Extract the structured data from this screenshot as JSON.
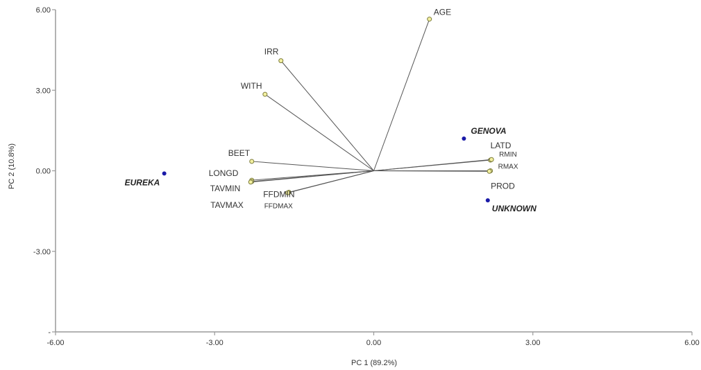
{
  "chart_data": {
    "type": "scatter",
    "subtype": "pca-biplot",
    "title": "",
    "xlabel": "PC 1 (89.2%)",
    "ylabel": "PC 2 (10.8%)",
    "xlim": [
      -6,
      6
    ],
    "ylim": [
      -6,
      6
    ],
    "x_ticks": [
      {
        "value": -6,
        "label": "-6.00"
      },
      {
        "value": -3,
        "label": "-3.00"
      },
      {
        "value": 0,
        "label": "0.00"
      },
      {
        "value": 3,
        "label": "3.00"
      },
      {
        "value": 6,
        "label": "6.00"
      }
    ],
    "y_ticks": [
      {
        "value": 6,
        "label": "6.00"
      },
      {
        "value": 3,
        "label": "3.00"
      },
      {
        "value": 0,
        "label": "0.00"
      },
      {
        "value": -3,
        "label": "-3.00"
      },
      {
        "value": -6,
        "label": "-"
      }
    ],
    "grid": false,
    "colors": {
      "axis": "#9a9a9a",
      "vector": "#555555",
      "vector_tip_fill": "#f3f0a0",
      "vector_tip_stroke": "#7a7a3a",
      "observation": "#1a1aa8"
    },
    "variables": [
      {
        "name": "AGE",
        "x": 1.05,
        "y": 5.65
      },
      {
        "name": "IRR",
        "x": -1.75,
        "y": 4.1
      },
      {
        "name": "WITH",
        "x": -2.05,
        "y": 2.85
      },
      {
        "name": "BEET",
        "x": -2.3,
        "y": 0.35
      },
      {
        "name": "LONGD",
        "x": -2.3,
        "y": -0.35
      },
      {
        "name": "TAVMIN",
        "x": -2.3,
        "y": -0.4
      },
      {
        "name": "TAVMAX",
        "x": -2.32,
        "y": -0.42
      },
      {
        "name": "FFDMIN",
        "x": -1.6,
        "y": -0.8
      },
      {
        "name": "FFDMAX",
        "x": -1.62,
        "y": -0.82
      },
      {
        "name": "LATD",
        "x": 2.2,
        "y": 0.4
      },
      {
        "name": "RMIN",
        "x": 2.22,
        "y": 0.42
      },
      {
        "name": "RMAX",
        "x": 2.2,
        "y": 0.0
      },
      {
        "name": "PROD",
        "x": 2.18,
        "y": -0.02
      }
    ],
    "observations": [
      {
        "name": "EUREKA",
        "x": -3.95,
        "y": -0.1
      },
      {
        "name": "GENOVA",
        "x": 1.7,
        "y": 1.2
      },
      {
        "name": "UNKNOWN",
        "x": 2.15,
        "y": -1.1
      }
    ]
  }
}
